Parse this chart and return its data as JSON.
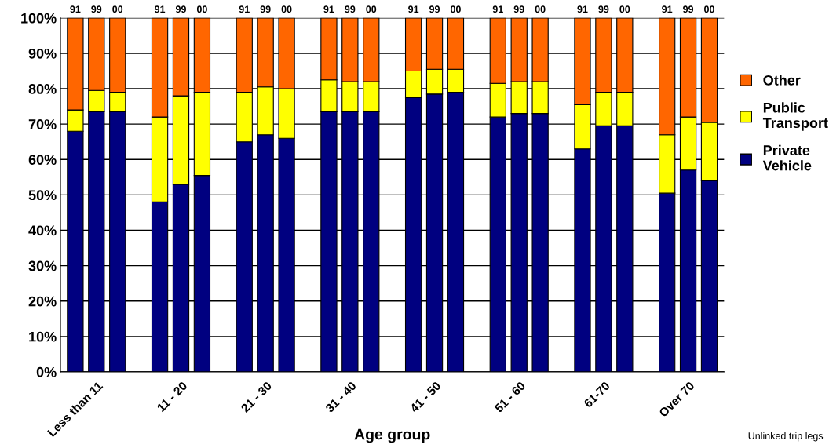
{
  "chart_data": {
    "type": "bar",
    "stacked": true,
    "xlabel": "Age group",
    "categories": [
      "91",
      "99",
      "00",
      "91",
      "99",
      "00",
      "91",
      "99",
      "00",
      "91",
      "99",
      "00",
      "91",
      "99",
      "00",
      "91",
      "99",
      "00",
      "91",
      "99",
      "00",
      "91",
      "99",
      "00"
    ],
    "series": [
      {
        "name": "Private\nVehicle",
        "color": "#000080",
        "values": [
          68,
          73.5,
          73.5,
          48,
          53,
          55.5,
          65,
          67,
          66,
          73.5,
          73.5,
          73.5,
          77.5,
          78.5,
          79,
          72,
          73,
          73,
          63,
          69.5,
          69.5,
          50.5,
          57,
          54
        ]
      },
      {
        "name": "Public\nTransport",
        "color": "#ffff00",
        "values": [
          6,
          6,
          5.5,
          24,
          25,
          23.5,
          14,
          13.5,
          14,
          9,
          8.5,
          8.5,
          7.5,
          7,
          6.5,
          9.5,
          9,
          9,
          12.5,
          9.5,
          9.5,
          16.5,
          15,
          16.5
        ]
      },
      {
        "name": "Other",
        "color": "#ff6600",
        "values": [
          26,
          20.5,
          21,
          28,
          22,
          21,
          21,
          19.5,
          20,
          17.5,
          18,
          18,
          15,
          14.5,
          14.5,
          18.5,
          18,
          18,
          24.5,
          21,
          21,
          33,
          28,
          29.5
        ]
      }
    ],
    "ylim": [
      0,
      100
    ],
    "yticks": [
      {
        "value": 0,
        "label": "0%"
      },
      {
        "value": 10,
        "label": "10%"
      },
      {
        "value": 20,
        "label": "20%"
      },
      {
        "value": 30,
        "label": "30%"
      },
      {
        "value": 40,
        "label": "40%"
      },
      {
        "value": 50,
        "label": "50%"
      },
      {
        "value": 60,
        "label": "60%"
      },
      {
        "value": 70,
        "label": "70%"
      },
      {
        "value": 80,
        "label": "80%"
      },
      {
        "value": 90,
        "label": "90%"
      },
      {
        "value": 100,
        "label": "100%"
      }
    ],
    "grid": "y",
    "legend": "right",
    "annotations": [
      "Less than 11",
      "11 - 20",
      "21 - 30",
      "31 - 40",
      "41 - 50",
      "51 - 60",
      "61-70",
      "Over 70",
      "Unlinked trip legs"
    ]
  }
}
